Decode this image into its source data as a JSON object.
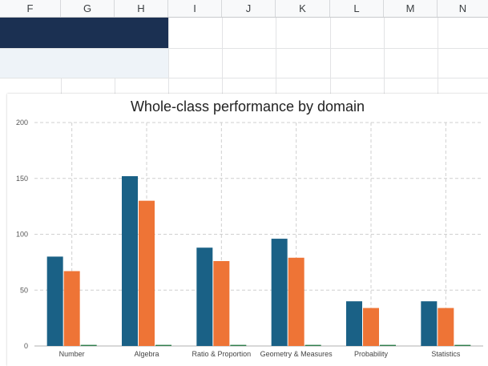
{
  "sheet": {
    "columns": [
      "F",
      "G",
      "H",
      "I",
      "J",
      "K",
      "L",
      "M",
      "N"
    ],
    "band_colors": {
      "dark": "#1b3052",
      "light": "#eef3f8"
    }
  },
  "chart_data": {
    "type": "bar",
    "title": "Whole-class performance by domain",
    "categories": [
      "Number",
      "Algebra",
      "Ratio & Proportion",
      "Geometry & Measures",
      "Probability",
      "Statistics"
    ],
    "series": [
      {
        "values": [
          80,
          152,
          88,
          96,
          40,
          40
        ],
        "color": "#1a6186"
      },
      {
        "values": [
          67,
          130,
          76,
          79,
          34,
          34
        ],
        "color": "#ee7436"
      },
      {
        "values": [
          1,
          1,
          1,
          1,
          1,
          1
        ],
        "color": "#2f7d4b"
      }
    ],
    "ylim": [
      0,
      200
    ],
    "yticks": [
      "0",
      "50",
      "100",
      "150",
      "200"
    ],
    "grid": true,
    "xlabel": "",
    "ylabel": ""
  }
}
